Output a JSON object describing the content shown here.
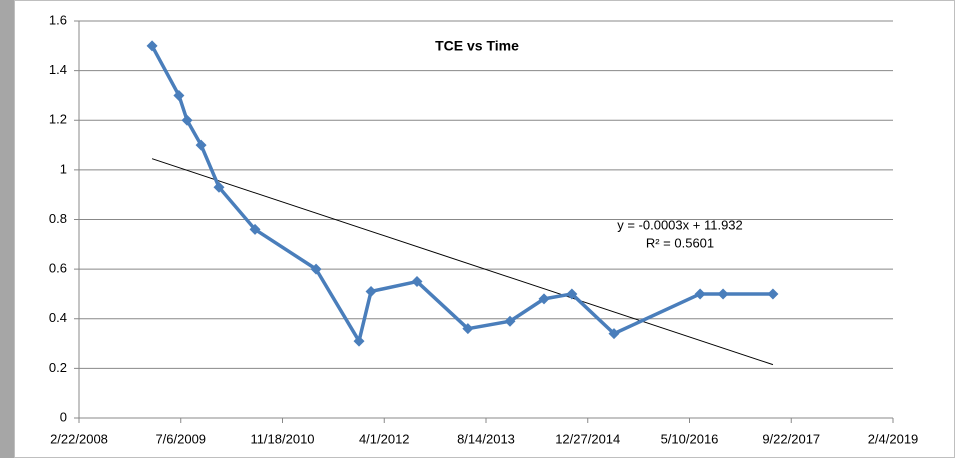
{
  "chart_data": {
    "type": "scatter",
    "title": "TCE vs Time",
    "series": [
      {
        "name": "TCE",
        "color": "#4a7ebb",
        "x": [
          39859,
          39991,
          40031,
          40100,
          40188,
          40365,
          40665,
          40876,
          40935,
          41161,
          41411,
          41618,
          41785,
          41922,
          42129,
          42552,
          42665,
          42910
        ],
        "values": [
          1.5,
          1.3,
          1.2,
          1.1,
          0.93,
          0.76,
          0.6,
          0.31,
          0.51,
          0.55,
          0.36,
          0.39,
          0.48,
          0.5,
          0.34,
          0.5,
          0.5,
          0.5
        ]
      }
    ],
    "trendline": {
      "color": "#000000",
      "x": [
        39859,
        42910
      ],
      "values": [
        1.045,
        0.215
      ],
      "equation": "y = -0.0003x + 11.932",
      "r_squared": "R² = 0.5601"
    },
    "xlim": [
      39500,
      43500
    ],
    "xticks": [
      {
        "value": 39500,
        "label": "2/22/2008"
      },
      {
        "value": 40000,
        "label": "7/6/2009"
      },
      {
        "value": 40500,
        "label": "11/18/2010"
      },
      {
        "value": 41000,
        "label": "4/1/2012"
      },
      {
        "value": 41500,
        "label": "8/14/2013"
      },
      {
        "value": 42000,
        "label": "12/27/2014"
      },
      {
        "value": 42500,
        "label": "5/10/2016"
      },
      {
        "value": 43000,
        "label": "9/22/2017"
      },
      {
        "value": 43500,
        "label": "2/4/2019"
      }
    ],
    "ylim": [
      0,
      1.6
    ],
    "yticks": [
      0,
      0.2,
      0.4,
      0.6,
      0.8,
      1,
      1.2,
      1.4,
      1.6
    ],
    "grid": true
  }
}
